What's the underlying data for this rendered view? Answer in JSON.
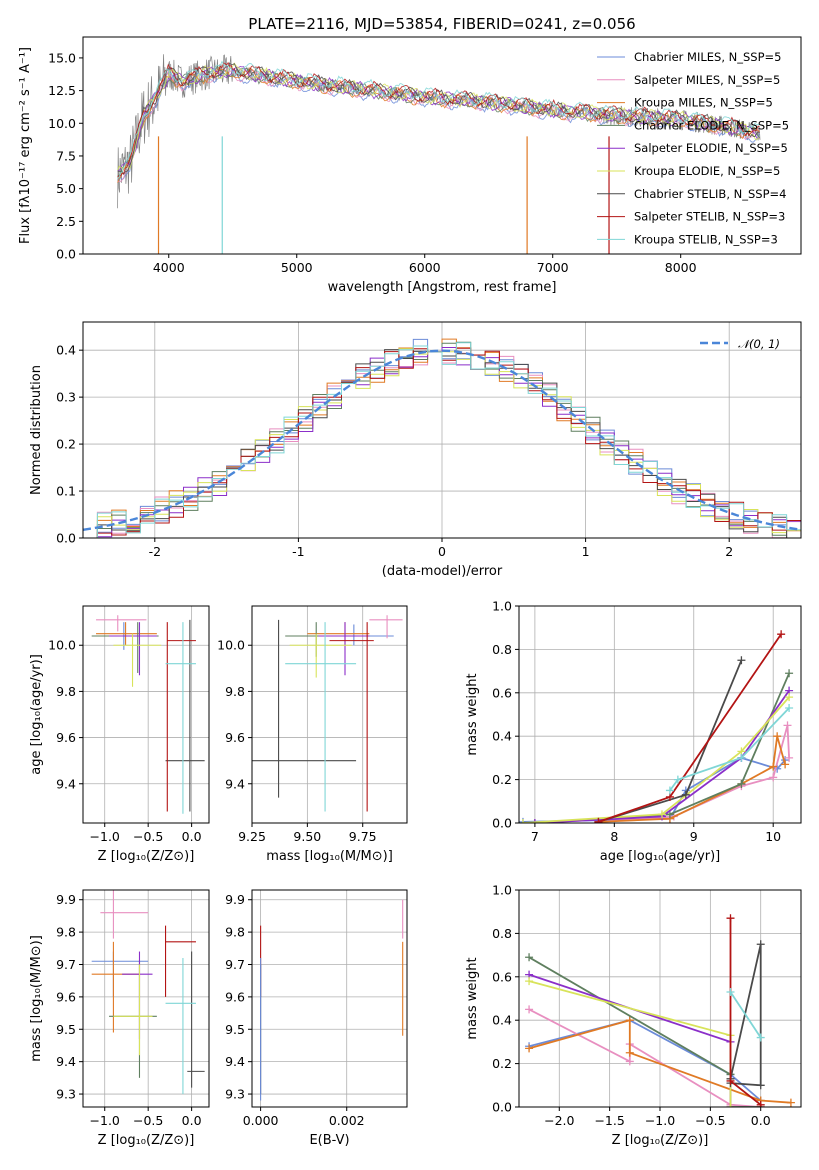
{
  "colors": {
    "series": [
      "#6b8bd8",
      "#e88fc0",
      "#e07a25",
      "#5f7f5f",
      "#8b2fc9",
      "#d8e35a",
      "#4a4a4a",
      "#b31414",
      "#7fd6d6"
    ]
  },
  "chart_data": [
    {
      "id": "spectrum",
      "type": "line",
      "title": "PLATE=2116, MJD=53854, FIBERID=0241, z=0.056",
      "xlabel": "wavelength [Angstrom, rest frame]",
      "ylabel": "Flux [fλ10⁻¹⁷ erg cm⁻² s⁻¹ A⁻¹]",
      "xlim": [
        3330,
        8940
      ],
      "ylim": [
        0,
        16.6
      ],
      "xticks": [
        4000,
        5000,
        6000,
        7000,
        8000
      ],
      "yticks": [
        0.0,
        2.5,
        5.0,
        7.5,
        10.0,
        12.5,
        15.0
      ],
      "legend": "top-right",
      "series": [
        {
          "name": "Chabrier MILES, N_SSP=5"
        },
        {
          "name": "Salpeter MILES, N_SSP=5"
        },
        {
          "name": "Kroupa MILES, N_SSP=5"
        },
        {
          "name": "Chabrier ELODIE, N_SSP=5"
        },
        {
          "name": "Salpeter ELODIE, N_SSP=5"
        },
        {
          "name": "Kroupa ELODIE, N_SSP=5"
        },
        {
          "name": "Chabrier STELIB, N_SSP=4"
        },
        {
          "name": "Salpeter STELIB, N_SSP=3"
        },
        {
          "name": "Kroupa STELIB, N_SSP=3"
        }
      ],
      "data_trend": {
        "x": [
          3600,
          3700,
          3800,
          3900,
          4000,
          4100,
          4300,
          4500,
          5000,
          5500,
          6000,
          6500,
          7000,
          7500,
          8000,
          8500,
          8600
        ],
        "y": [
          6.0,
          7.0,
          10.5,
          12.0,
          13.8,
          13.2,
          13.8,
          14.0,
          13.2,
          12.6,
          12.0,
          11.6,
          11.0,
          10.6,
          10.3,
          9.5,
          9.2
        ]
      },
      "observed_color": "#808080"
    },
    {
      "id": "residuals",
      "type": "line",
      "xlabel": "(data-model)/error",
      "ylabel": "Normed distribution",
      "xlim": [
        -2.5,
        2.5
      ],
      "ylim": [
        0,
        0.46
      ],
      "xticks": [
        -2,
        -1,
        0,
        1,
        2
      ],
      "yticks": [
        0.0,
        0.1,
        0.2,
        0.3,
        0.4
      ],
      "grid": true,
      "legend": "top-right",
      "reference": {
        "name": "𝒩(0, 1)",
        "mu": 0,
        "sigma": 1
      },
      "bin_width": 0.1
    },
    {
      "id": "age-vs-Z",
      "type": "scatter",
      "xlabel": "Z [log₁₀(Z/Z⊙)]",
      "ylabel": "age  [log₁₀(age/yr)]",
      "xlim": [
        -1.25,
        0.2
      ],
      "ylim": [
        9.23,
        10.17
      ],
      "xticks": [
        -1.0,
        -0.5,
        0.0
      ],
      "xticklabels": [
        "−1.0",
        "−0.5",
        "0.0"
      ],
      "yticks": [
        9.4,
        9.6,
        9.8,
        10.0
      ],
      "yticklabels": [
        "9.4",
        "9.6",
        "9.8",
        "10.0"
      ],
      "grid": true,
      "points": [
        {
          "s": 0,
          "x": -0.78,
          "y": 10.04,
          "xe": [
            -1.05,
            -0.45
          ],
          "ye": [
            9.98,
            10.1
          ]
        },
        {
          "s": 1,
          "x": -0.85,
          "y": 10.11,
          "xe": [
            -1.1,
            -0.52
          ],
          "ye": [
            10.06,
            10.13
          ]
        },
        {
          "s": 2,
          "x": -0.76,
          "y": 10.05,
          "xe": [
            -1.1,
            -0.4
          ],
          "ye": [
            10.0,
            10.1
          ]
        },
        {
          "s": 3,
          "x": -0.62,
          "y": 10.04,
          "xe": [
            -1.15,
            -0.38
          ],
          "ye": [
            9.88,
            10.1
          ]
        },
        {
          "s": 4,
          "x": -0.6,
          "y": 10.04,
          "xe": [
            -0.95,
            -0.4
          ],
          "ye": [
            9.87,
            10.1
          ]
        },
        {
          "s": 5,
          "x": -0.68,
          "y": 10.0,
          "xe": [
            -0.9,
            -0.35
          ],
          "ye": [
            9.82,
            10.05
          ]
        },
        {
          "s": 6,
          "x": -0.02,
          "y": 9.5,
          "xe": [
            -0.3,
            0.15
          ],
          "ye": [
            9.28,
            10.11
          ]
        },
        {
          "s": 7,
          "x": -0.28,
          "y": 10.02,
          "xe": [
            -0.28,
            0.05
          ],
          "ye": [
            9.28,
            10.1
          ]
        },
        {
          "s": 8,
          "x": -0.1,
          "y": 9.92,
          "xe": [
            -0.3,
            0.05
          ],
          "ye": [
            9.27,
            10.1
          ]
        }
      ]
    },
    {
      "id": "age-vs-mass",
      "type": "scatter",
      "xlabel": "mass [log₁₀(M/M⊙)]",
      "ylabel": "",
      "xlim": [
        9.25,
        9.95
      ],
      "ylim": [
        9.23,
        10.17
      ],
      "xticks": [
        9.25,
        9.5,
        9.75
      ],
      "xticklabels": [
        "9.25",
        "9.50",
        "9.75"
      ],
      "yticks": [
        9.4,
        9.6,
        9.8,
        10.0
      ],
      "yticklabels": [
        "9.4",
        "9.6",
        "9.8",
        "10.0"
      ],
      "grid": true,
      "points": [
        {
          "s": 0,
          "x": 9.71,
          "y": 10.04,
          "xe": [
            9.55,
            9.89
          ],
          "ye": [
            10.0,
            10.09
          ]
        },
        {
          "s": 1,
          "x": 9.86,
          "y": 10.11,
          "xe": [
            9.78,
            9.93
          ],
          "ye": [
            10.03,
            10.13
          ]
        },
        {
          "s": 2,
          "x": 9.67,
          "y": 10.05,
          "xe": [
            9.5,
            9.78
          ],
          "ye": [
            10.0,
            10.1
          ]
        },
        {
          "s": 3,
          "x": 9.54,
          "y": 10.04,
          "xe": [
            9.4,
            9.72
          ],
          "ye": [
            9.95,
            10.1
          ]
        },
        {
          "s": 4,
          "x": 9.67,
          "y": 10.04,
          "xe": [
            9.55,
            9.78
          ],
          "ye": [
            9.87,
            10.1
          ]
        },
        {
          "s": 5,
          "x": 9.54,
          "y": 10.0,
          "xe": [
            9.42,
            9.7
          ],
          "ye": [
            9.86,
            10.05
          ]
        },
        {
          "s": 6,
          "x": 9.37,
          "y": 9.5,
          "xe": [
            9.25,
            9.72
          ],
          "ye": [
            9.34,
            10.11
          ]
        },
        {
          "s": 7,
          "x": 9.77,
          "y": 10.02,
          "xe": [
            9.6,
            9.8
          ],
          "ye": [
            9.28,
            10.1
          ]
        },
        {
          "s": 8,
          "x": 9.58,
          "y": 9.92,
          "xe": [
            9.4,
            9.72
          ],
          "ye": [
            9.28,
            10.1
          ]
        }
      ]
    },
    {
      "id": "massweight-vs-age",
      "type": "line",
      "xlabel": "age  [log₁₀(age/yr)]",
      "ylabel": "mass weight",
      "xlim": [
        6.8,
        10.35
      ],
      "ylim": [
        0,
        1.0
      ],
      "xticks": [
        7,
        8,
        9,
        10
      ],
      "yticks": [
        0.0,
        0.2,
        0.4,
        0.6,
        0.8,
        1.0
      ],
      "grid": true,
      "series": [
        {
          "s": 0,
          "x": [
            6.85,
            8.7,
            8.9,
            9.6,
            10.05,
            10.15
          ],
          "y": [
            0.005,
            0.02,
            0.15,
            0.3,
            0.25,
            0.29
          ]
        },
        {
          "s": 1,
          "x": [
            7.8,
            8.75,
            9.6,
            10.0,
            10.18,
            10.2
          ],
          "y": [
            0.005,
            0.03,
            0.17,
            0.21,
            0.45,
            0.3
          ]
        },
        {
          "s": 2,
          "x": [
            7.8,
            8.7,
            9.6,
            10.0,
            10.05,
            10.15
          ],
          "y": [
            0.005,
            0.02,
            0.18,
            0.26,
            0.4,
            0.27
          ]
        },
        {
          "s": 3,
          "x": [
            7.0,
            8.7,
            9.6,
            10.2
          ],
          "y": [
            0.0,
            0.04,
            0.18,
            0.69
          ]
        },
        {
          "s": 4,
          "x": [
            7.0,
            8.6,
            9.6,
            10.2
          ],
          "y": [
            0.0,
            0.03,
            0.3,
            0.61
          ]
        },
        {
          "s": 5,
          "x": [
            6.85,
            8.6,
            9.6,
            10.2
          ],
          "y": [
            0.0,
            0.04,
            0.33,
            0.58
          ]
        },
        {
          "s": 6,
          "x": [
            7.8,
            8.9,
            9.6
          ],
          "y": [
            0.005,
            0.13,
            0.75
          ]
        },
        {
          "s": 7,
          "x": [
            7.8,
            8.7,
            10.1
          ],
          "y": [
            0.005,
            0.12,
            0.87
          ]
        },
        {
          "s": 8,
          "x": [
            8.7,
            8.8,
            9.6,
            10.2
          ],
          "y": [
            0.15,
            0.2,
            0.3,
            0.53
          ]
        }
      ]
    },
    {
      "id": "mass-vs-Z",
      "type": "scatter",
      "xlabel": "Z [log₁₀(Z/Z⊙)]",
      "ylabel": "mass [log₁₀(M/M⊙)]",
      "xlim": [
        -1.25,
        0.2
      ],
      "ylim": [
        9.26,
        9.93
      ],
      "xticks": [
        -1.0,
        -0.5,
        0.0
      ],
      "xticklabels": [
        "−1.0",
        "−0.5",
        "0.0"
      ],
      "yticks": [
        9.3,
        9.4,
        9.5,
        9.6,
        9.7,
        9.8,
        9.9
      ],
      "yticklabels": [
        "9.3",
        "9.4",
        "9.5",
        "9.6",
        "9.7",
        "9.8",
        "9.9"
      ],
      "grid": true,
      "points": [
        {
          "s": 0,
          "x": -0.9,
          "y": 9.71,
          "xe": [
            -1.15,
            -0.5
          ],
          "ye": [
            9.6,
            9.74
          ]
        },
        {
          "s": 1,
          "x": -0.9,
          "y": 9.86,
          "xe": [
            -1.05,
            -0.5
          ],
          "ye": [
            9.78,
            9.93
          ]
        },
        {
          "s": 2,
          "x": -0.9,
          "y": 9.67,
          "xe": [
            -1.15,
            -0.6
          ],
          "ye": [
            9.49,
            9.77
          ]
        },
        {
          "s": 3,
          "x": -0.6,
          "y": 9.54,
          "xe": [
            -0.95,
            -0.4
          ],
          "ye": [
            9.35,
            9.71
          ]
        },
        {
          "s": 4,
          "x": -0.6,
          "y": 9.67,
          "xe": [
            -0.8,
            -0.45
          ],
          "ye": [
            9.47,
            9.74
          ]
        },
        {
          "s": 5,
          "x": -0.6,
          "y": 9.54,
          "xe": [
            -0.9,
            -0.45
          ],
          "ye": [
            9.42,
            9.7
          ]
        },
        {
          "s": 6,
          "x": 0.0,
          "y": 9.37,
          "xe": [
            -0.05,
            0.15
          ],
          "ye": [
            9.32,
            9.74
          ]
        },
        {
          "s": 7,
          "x": -0.3,
          "y": 9.77,
          "xe": [
            -0.3,
            0.05
          ],
          "ye": [
            9.6,
            9.82
          ]
        },
        {
          "s": 8,
          "x": -0.1,
          "y": 9.58,
          "xe": [
            -0.3,
            0.05
          ],
          "ye": [
            9.3,
            9.72
          ]
        }
      ]
    },
    {
      "id": "mass-vs-EBV",
      "type": "scatter",
      "xlabel": "E(B-V)",
      "ylabel": "",
      "xlim": [
        -0.0002,
        0.0034
      ],
      "ylim": [
        9.26,
        9.93
      ],
      "xticks": [
        0.0,
        0.002
      ],
      "xticklabels": [
        "0.000",
        "0.002"
      ],
      "yticks": [
        9.3,
        9.4,
        9.5,
        9.6,
        9.7,
        9.8,
        9.9
      ],
      "yticklabels": [
        "9.3",
        "9.4",
        "9.5",
        "9.6",
        "9.7",
        "9.8",
        "9.9"
      ],
      "grid": true,
      "points": [
        {
          "s": 7,
          "x": 0.0,
          "y": 9.77,
          "xe": [
            0.0,
            0.0
          ],
          "ye": [
            9.6,
            9.82
          ]
        },
        {
          "s": 6,
          "x": 0.0,
          "y": 9.5,
          "xe": [
            0.0,
            0.0
          ],
          "ye": [
            9.3,
            9.7
          ]
        },
        {
          "s": 0,
          "x": 0.0,
          "y": 9.55,
          "xe": [
            0.0,
            0.0
          ],
          "ye": [
            9.28,
            9.72
          ]
        },
        {
          "s": 2,
          "x": 0.0033,
          "y": 9.67,
          "xe": [
            0.0033,
            0.0033
          ],
          "ye": [
            9.48,
            9.77
          ]
        },
        {
          "s": 1,
          "x": 0.0033,
          "y": 9.86,
          "xe": [
            0.0033,
            0.0033
          ],
          "ye": [
            9.78,
            9.9
          ]
        }
      ]
    },
    {
      "id": "massweight-vs-Z",
      "type": "line",
      "xlabel": "Z [log₁₀(Z/Z⊙)]",
      "ylabel": "mass weight",
      "xlim": [
        -2.4,
        0.4
      ],
      "ylim": [
        0,
        1.0
      ],
      "xticks": [
        -2.0,
        -1.5,
        -1.0,
        -0.5,
        0.0
      ],
      "xticklabels": [
        "−2.0",
        "−1.5",
        "−1.0",
        "−0.5",
        "0.0"
      ],
      "yticks": [
        0.0,
        0.2,
        0.4,
        0.6,
        0.8,
        1.0
      ],
      "grid": true,
      "series": [
        {
          "s": 0,
          "x": [
            -2.3,
            -1.3,
            -0.3,
            0.0
          ],
          "y": [
            0.28,
            0.4,
            0.15,
            0.03
          ]
        },
        {
          "s": 1,
          "x": [
            -2.3,
            -1.3,
            -1.3,
            -0.3,
            0.0
          ],
          "y": [
            0.45,
            0.21,
            0.29,
            0.01,
            0.0
          ]
        },
        {
          "s": 2,
          "x": [
            -2.3,
            -1.3,
            -1.3,
            0.0,
            0.3
          ],
          "y": [
            0.27,
            0.4,
            0.25,
            0.03,
            0.02
          ]
        },
        {
          "s": 3,
          "x": [
            -2.3,
            -0.3,
            -0.3,
            0.0
          ],
          "y": [
            0.69,
            0.15,
            0.0,
            0.0
          ]
        },
        {
          "s": 4,
          "x": [
            -2.3,
            -0.3,
            -0.3
          ],
          "y": [
            0.61,
            0.3,
            0.0
          ]
        },
        {
          "s": 5,
          "x": [
            -2.3,
            -0.3,
            -0.3
          ],
          "y": [
            0.58,
            0.33,
            0.0
          ]
        },
        {
          "s": 6,
          "x": [
            -0.3,
            0.0,
            0.0,
            -0.3
          ],
          "y": [
            0.13,
            0.75,
            0.1,
            0.11
          ]
        },
        {
          "s": 7,
          "x": [
            -0.3,
            -0.3,
            0.0,
            0.0
          ],
          "y": [
            0.87,
            0.12,
            0.01,
            0.0
          ]
        },
        {
          "s": 8,
          "x": [
            -0.3,
            0.0
          ],
          "y": [
            0.53,
            0.32
          ]
        }
      ]
    }
  ]
}
